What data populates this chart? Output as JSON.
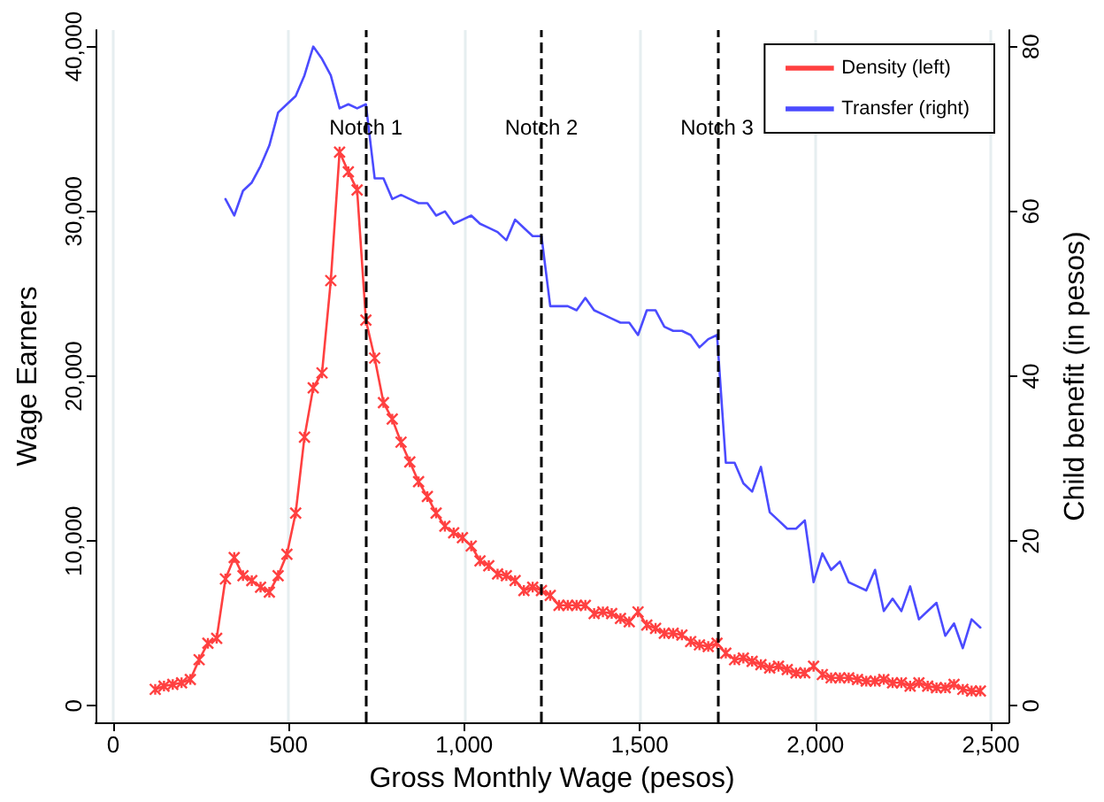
{
  "chart_data": {
    "type": "line",
    "xlabel": "Gross Monthly Wage (pesos)",
    "ylabel": "Wage Earners",
    "y2label": "Child benefit (in pesos)",
    "xlim": [
      -50,
      2550
    ],
    "xticks": [
      0,
      500,
      {
        "value": 1000,
        "label": "1,000"
      },
      {
        "value": 1500,
        "label": "1,500"
      },
      {
        "value": 2000,
        "label": "2,000"
      },
      {
        "value": 2500,
        "label": "2,500"
      }
    ],
    "ylim": [
      -1000,
      41000
    ],
    "yticks": [
      0,
      {
        "value": 10000,
        "label": "10,000"
      },
      {
        "value": 20000,
        "label": "20,000"
      },
      {
        "value": 30000,
        "label": "30,000"
      },
      {
        "value": 40000,
        "label": "40,000"
      }
    ],
    "y2lim": [
      -2,
      82
    ],
    "y2ticks": [
      0,
      20,
      40,
      60,
      80
    ],
    "grid": "x",
    "legend": "top right",
    "ref_lines": [
      {
        "axis": "x",
        "value": 720,
        "label": "Notch 1",
        "color": "#000000",
        "line_style": "dashed"
      },
      {
        "axis": "x",
        "value": 1220,
        "label": "Notch 2",
        "color": "#000000",
        "line_style": "dashed"
      },
      {
        "axis": "x",
        "value": 1720,
        "label": "Notch 3",
        "color": "#000000",
        "line_style": "dashed"
      }
    ],
    "series": [
      {
        "name": "Density (left)",
        "color": "#ff4040",
        "marker": "cross",
        "x": [
          120,
          145,
          170,
          195,
          220,
          245,
          270,
          295,
          320,
          345,
          370,
          395,
          420,
          445,
          470,
          495,
          520,
          545,
          570,
          595,
          620,
          645,
          670,
          695,
          720,
          745,
          770,
          795,
          820,
          845,
          870,
          895,
          920,
          945,
          970,
          995,
          1020,
          1045,
          1070,
          1095,
          1120,
          1145,
          1170,
          1195,
          1220,
          1245,
          1270,
          1295,
          1320,
          1345,
          1370,
          1395,
          1420,
          1445,
          1470,
          1495,
          1520,
          1545,
          1570,
          1595,
          1620,
          1645,
          1670,
          1695,
          1720,
          1745,
          1770,
          1795,
          1820,
          1845,
          1870,
          1895,
          1920,
          1945,
          1970,
          1995,
          2020,
          2045,
          2070,
          2095,
          2120,
          2145,
          2170,
          2195,
          2220,
          2245,
          2270,
          2295,
          2320,
          2345,
          2370,
          2395,
          2420,
          2445,
          2470
        ],
        "values": [
          1000,
          1200,
          1300,
          1400,
          1600,
          2800,
          3800,
          4100,
          7700,
          9000,
          7900,
          7600,
          7200,
          6900,
          7900,
          9200,
          11700,
          16300,
          19300,
          20200,
          25800,
          33600,
          32400,
          31300,
          23400,
          21100,
          18400,
          17400,
          16000,
          14800,
          13600,
          12700,
          11700,
          10900,
          10500,
          10200,
          9700,
          8800,
          8500,
          8000,
          7900,
          7600,
          7000,
          7200,
          7000,
          6700,
          6100,
          6100,
          6100,
          6100,
          5600,
          5700,
          5600,
          5300,
          5100,
          5700,
          4900,
          4700,
          4400,
          4400,
          4300,
          3900,
          3700,
          3600,
          3800,
          3200,
          2800,
          2900,
          2700,
          2500,
          2300,
          2400,
          2200,
          2000,
          2000,
          2400,
          1900,
          1700,
          1700,
          1700,
          1600,
          1500,
          1500,
          1600,
          1400,
          1400,
          1200,
          1400,
          1200,
          1100,
          1100,
          1300,
          1000,
          900,
          900
        ]
      },
      {
        "name": "Transfer (right)",
        "color": "#4b4bff",
        "marker": "none",
        "axis": "y2",
        "x": [
          320,
          345,
          370,
          395,
          420,
          445,
          470,
          495,
          520,
          545,
          570,
          595,
          620,
          645,
          670,
          695,
          720,
          745,
          770,
          795,
          820,
          845,
          870,
          895,
          920,
          945,
          970,
          995,
          1020,
          1045,
          1070,
          1095,
          1120,
          1145,
          1170,
          1195,
          1220,
          1245,
          1270,
          1295,
          1320,
          1345,
          1370,
          1395,
          1420,
          1445,
          1470,
          1495,
          1520,
          1545,
          1570,
          1595,
          1620,
          1645,
          1670,
          1695,
          1720,
          1745,
          1770,
          1795,
          1820,
          1845,
          1870,
          1895,
          1920,
          1945,
          1970,
          1995,
          2020,
          2045,
          2070,
          2095,
          2120,
          2145,
          2170,
          2195,
          2220,
          2245,
          2270,
          2295,
          2320,
          2345,
          2370,
          2395,
          2420,
          2445,
          2470
        ],
        "values": [
          61.5,
          59.5,
          62.5,
          63.5,
          65.5,
          68,
          72,
          73,
          74,
          76.5,
          80,
          78.5,
          76.5,
          72.5,
          73,
          72.5,
          73,
          64,
          64,
          61.5,
          62,
          61.5,
          61,
          61,
          59.5,
          60,
          58.5,
          59,
          59.5,
          58.5,
          58,
          57.5,
          56.5,
          59,
          58,
          57,
          57,
          48.5,
          48.5,
          48.5,
          48,
          49.5,
          48,
          47.5,
          47,
          46.5,
          46.5,
          45,
          48,
          48,
          46,
          45.5,
          45.5,
          45,
          43.5,
          44.5,
          45,
          29.5,
          29.5,
          27,
          26,
          29,
          23.5,
          22.5,
          21.5,
          21.5,
          22.5,
          15,
          18.5,
          16.5,
          17.5,
          15,
          14.5,
          14,
          16.5,
          11.5,
          13,
          11.5,
          14.5,
          10.5,
          11.5,
          12.5,
          8.5,
          10,
          7,
          10.5,
          9.5
        ]
      }
    ]
  }
}
